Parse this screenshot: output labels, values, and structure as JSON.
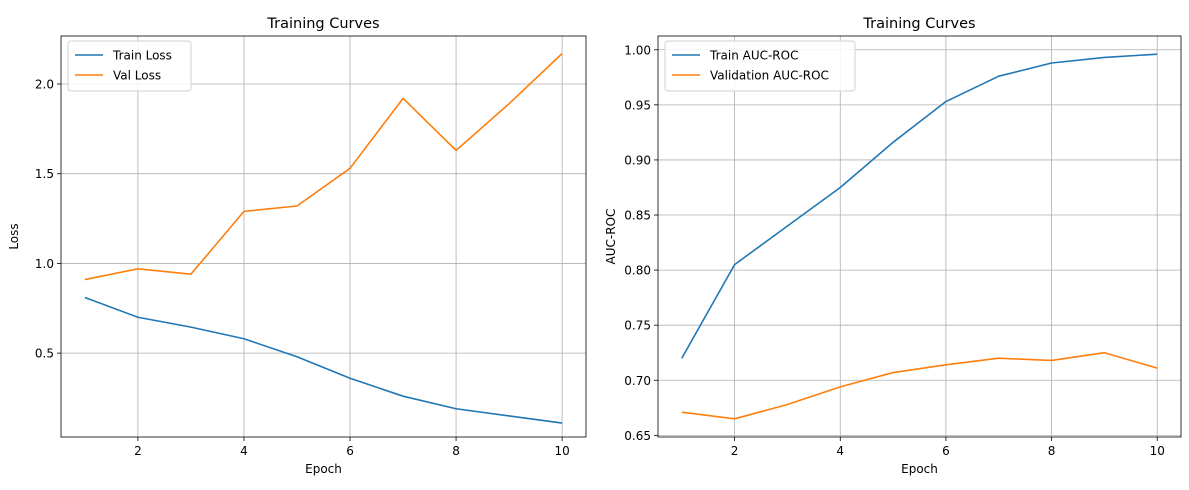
{
  "colors": {
    "series1": "#1f77b4",
    "series2": "#ff7f0e"
  },
  "chart_data": [
    {
      "type": "line",
      "title": "Training Curves",
      "xlabel": "Epoch",
      "ylabel": "Loss",
      "xlim": [
        0.55,
        10.45
      ],
      "ylim": [
        0.0325,
        2.2675
      ],
      "xticks": [
        2,
        4,
        6,
        8,
        10
      ],
      "yticks": [
        0.5,
        1.0,
        1.5,
        2.0
      ],
      "ytick_labels": [
        "0.5",
        "1.0",
        "1.5",
        "2.0"
      ],
      "grid": true,
      "legend_position": "upper left",
      "x": [
        1,
        2,
        3,
        4,
        5,
        6,
        7,
        8,
        9,
        10
      ],
      "series": [
        {
          "name": "Train Loss",
          "values": [
            0.81,
            0.7,
            0.645,
            0.58,
            0.48,
            0.36,
            0.26,
            0.19,
            0.15,
            0.11
          ]
        },
        {
          "name": "Val Loss",
          "values": [
            0.91,
            0.97,
            0.94,
            1.29,
            1.32,
            1.53,
            1.92,
            1.63,
            1.89,
            2.17
          ]
        }
      ]
    },
    {
      "type": "line",
      "title": "Training Curves",
      "xlabel": "Epoch",
      "ylabel": "AUC-ROC",
      "xlim": [
        0.55,
        10.45
      ],
      "ylim": [
        0.6485,
        1.0125
      ],
      "xticks": [
        2,
        4,
        6,
        8,
        10
      ],
      "yticks": [
        0.65,
        0.7,
        0.75,
        0.8,
        0.85,
        0.9,
        0.95,
        1.0
      ],
      "ytick_labels": [
        "0.65",
        "0.70",
        "0.75",
        "0.80",
        "0.85",
        "0.90",
        "0.95",
        "1.00"
      ],
      "grid": true,
      "legend_position": "upper left",
      "x": [
        1,
        2,
        3,
        4,
        5,
        6,
        7,
        8,
        9,
        10
      ],
      "series": [
        {
          "name": "Train AUC-ROC",
          "values": [
            0.72,
            0.805,
            0.84,
            0.875,
            0.916,
            0.953,
            0.976,
            0.988,
            0.993,
            0.996
          ]
        },
        {
          "name": "Validation AUC-ROC",
          "values": [
            0.671,
            0.665,
            0.678,
            0.694,
            0.707,
            0.714,
            0.72,
            0.718,
            0.725,
            0.711
          ]
        }
      ]
    }
  ]
}
